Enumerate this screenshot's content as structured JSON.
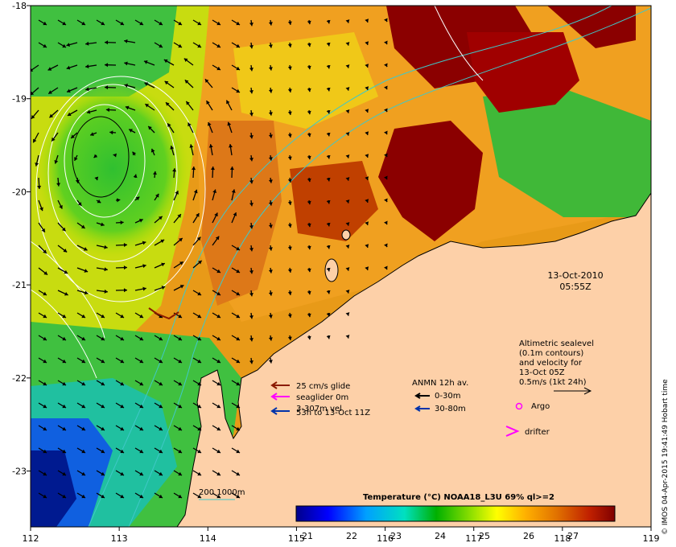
{
  "map": {
    "lon_ticks": [
      "112",
      "113",
      "114",
      "115",
      "116",
      "117",
      "118",
      "119"
    ],
    "lat_ticks": [
      "-18",
      "-19",
      "-20",
      "-21",
      "-22",
      "-23"
    ],
    "lon_range": [
      112,
      119
    ],
    "lat_range": [
      -23.6,
      -18
    ]
  },
  "datetime": {
    "date": "13-Oct-2010",
    "time": "05:55Z"
  },
  "altimetry": {
    "lines": [
      "Altimetric sealevel",
      "(0.1m contours)",
      "and velocity for",
      "13-Oct 05Z",
      "0.5m/s (1kt 24h)"
    ]
  },
  "glider_legend": {
    "items": [
      {
        "label": "25 cm/s glide",
        "color": "#8b1a00"
      },
      {
        "label": "seaglider 0m",
        "color": "#ff00ff"
      },
      {
        "label": "3-307m vel",
        "color": "#8b1a00"
      },
      {
        "label": "53h to 13-Oct 11Z",
        "color": "#0033aa"
      }
    ]
  },
  "anmn_legend": {
    "title": "ANMN 12h av.",
    "items": [
      {
        "label": "0-30m",
        "color": "#000000"
      },
      {
        "label": "30-80m",
        "color": "#0033aa"
      }
    ]
  },
  "markers": {
    "argo": "Argo",
    "drifter": "drifter",
    "argo_color": "#ff00ff",
    "drifter_color": "#ff00ff"
  },
  "isobath": {
    "label": "200  1000m",
    "color": "#40c8c8"
  },
  "colorbar": {
    "title": "Temperature (°C) NOAA18_L3U 69% ql>=2",
    "ticks": [
      "21",
      "22",
      "23",
      "24",
      "25",
      "26",
      "27"
    ]
  },
  "credit": "© IMOS 04-Apr-2015 19:41:49 Hobart time",
  "colors": {
    "land": "#fdd0a8",
    "warm": "#8b0000",
    "cool": "#00c000",
    "border": "#000000"
  }
}
